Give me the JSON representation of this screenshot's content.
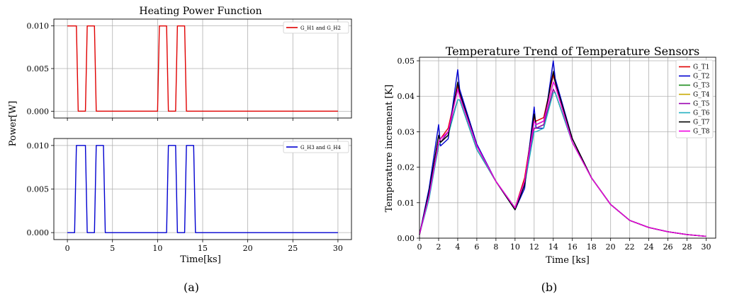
{
  "figure": {
    "panel_a_label": "(a)",
    "panel_b_label": "(b)"
  },
  "chart_data": [
    {
      "type": "line",
      "title": "Heating Power Function",
      "xlabel": "",
      "ylabel": "Power[W]",
      "xlim": [
        -1.5,
        31.5
      ],
      "ylim": [
        -0.0008,
        0.0108
      ],
      "xticks": [
        0,
        5,
        10,
        15,
        20,
        25,
        30
      ],
      "yticks": [
        0.0,
        0.005,
        0.01
      ],
      "ytick_labels": [
        "0.000",
        "0.005",
        "0.010"
      ],
      "grid": true,
      "legend_position": "top-right",
      "series": [
        {
          "name": "G_H1 and G_H2",
          "color": "#e00000",
          "x": [
            0,
            1,
            1.2,
            2,
            2.2,
            3,
            3.2,
            10,
            10.2,
            11,
            11.2,
            12,
            12.2,
            13,
            13.2,
            30
          ],
          "y": [
            0.01,
            0.01,
            0,
            0,
            0.01,
            0.01,
            0,
            0,
            0.01,
            0.01,
            0,
            0,
            0.01,
            0.01,
            0,
            0
          ]
        }
      ]
    },
    {
      "type": "line",
      "title": "",
      "xlabel": "Time[ks]",
      "ylabel": "",
      "xlim": [
        -1.5,
        31.5
      ],
      "ylim": [
        -0.0008,
        0.0108
      ],
      "xticks": [
        0,
        5,
        10,
        15,
        20,
        25,
        30
      ],
      "yticks": [
        0.0,
        0.005,
        0.01
      ],
      "ytick_labels": [
        "0.000",
        "0.005",
        "0.010"
      ],
      "grid": true,
      "legend_position": "top-right",
      "series": [
        {
          "name": "G_H3 and G_H4",
          "color": "#0000d0",
          "x": [
            0,
            0.8,
            1,
            2,
            2.2,
            3,
            3.2,
            4,
            4.2,
            11,
            11.2,
            12,
            12.2,
            13,
            13.2,
            14,
            14.2,
            30
          ],
          "y": [
            0,
            0,
            0.01,
            0.01,
            0,
            0,
            0.01,
            0.01,
            0,
            0,
            0.01,
            0.01,
            0,
            0,
            0.01,
            0.01,
            0,
            0
          ]
        }
      ]
    },
    {
      "type": "line",
      "title": "Temperature Trend of Temperature Sensors",
      "xlabel": "Time [ks]",
      "ylabel": "Temperature increment [K]",
      "xlim": [
        0,
        31
      ],
      "ylim": [
        0,
        0.051
      ],
      "xticks": [
        0,
        2,
        4,
        6,
        8,
        10,
        12,
        14,
        16,
        18,
        20,
        22,
        24,
        26,
        28,
        30
      ],
      "yticks": [
        0.0,
        0.01,
        0.02,
        0.03,
        0.04,
        0.05
      ],
      "ytick_labels": [
        "0.00",
        "0.01",
        "0.02",
        "0.03",
        "0.04",
        "0.05"
      ],
      "grid": true,
      "legend_position": "top-right",
      "x": [
        0,
        1,
        2,
        2.2,
        3,
        4,
        4.2,
        6,
        8,
        10,
        11,
        12,
        12.2,
        13,
        14,
        14.2,
        16,
        18,
        20,
        22,
        24,
        26,
        28,
        30
      ],
      "series": [
        {
          "name": "G_T1",
          "color": "#e00000",
          "y": [
            0.001,
            0.012,
            0.027,
            0.028,
            0.031,
            0.043,
            0.041,
            0.026,
            0.016,
            0.0085,
            0.017,
            0.034,
            0.033,
            0.034,
            0.046,
            0.044,
            0.028,
            0.017,
            0.0095,
            0.005,
            0.003,
            0.0018,
            0.001,
            0.0005
          ]
        },
        {
          "name": "G_T2",
          "color": "#0000d0",
          "y": [
            0.001,
            0.014,
            0.032,
            0.026,
            0.028,
            0.0475,
            0.042,
            0.0265,
            0.016,
            0.008,
            0.014,
            0.037,
            0.031,
            0.031,
            0.05,
            0.045,
            0.028,
            0.017,
            0.0095,
            0.005,
            0.003,
            0.0018,
            0.001,
            0.0005
          ]
        },
        {
          "name": "G_T3",
          "color": "#1a8a1a",
          "y": [
            0.001,
            0.012,
            0.026,
            0.027,
            0.03,
            0.039,
            0.039,
            0.025,
            0.016,
            0.0085,
            0.016,
            0.031,
            0.031,
            0.032,
            0.042,
            0.041,
            0.027,
            0.017,
            0.0095,
            0.005,
            0.003,
            0.0018,
            0.001,
            0.0005
          ]
        },
        {
          "name": "G_T4",
          "color": "#c8a800",
          "y": [
            0.001,
            0.012,
            0.026,
            0.027,
            0.03,
            0.039,
            0.039,
            0.025,
            0.016,
            0.0085,
            0.016,
            0.031,
            0.031,
            0.032,
            0.042,
            0.041,
            0.027,
            0.017,
            0.0095,
            0.005,
            0.003,
            0.0018,
            0.001,
            0.0005
          ]
        },
        {
          "name": "G_T5",
          "color": "#9a00b0",
          "y": [
            0.001,
            0.012,
            0.026,
            0.027,
            0.03,
            0.039,
            0.039,
            0.025,
            0.016,
            0.0085,
            0.016,
            0.031,
            0.031,
            0.032,
            0.042,
            0.041,
            0.027,
            0.017,
            0.0095,
            0.005,
            0.003,
            0.0018,
            0.001,
            0.0005
          ]
        },
        {
          "name": "G_T6",
          "color": "#20b0c0",
          "y": [
            0.001,
            0.011,
            0.026,
            0.027,
            0.029,
            0.039,
            0.039,
            0.025,
            0.016,
            0.0085,
            0.015,
            0.03,
            0.03,
            0.031,
            0.041,
            0.041,
            0.027,
            0.017,
            0.0095,
            0.005,
            0.003,
            0.0018,
            0.001,
            0.0005
          ]
        },
        {
          "name": "G_T7",
          "color": "#000000",
          "y": [
            0.001,
            0.013,
            0.029,
            0.027,
            0.029,
            0.044,
            0.041,
            0.026,
            0.016,
            0.008,
            0.015,
            0.035,
            0.032,
            0.033,
            0.047,
            0.044,
            0.028,
            0.017,
            0.0095,
            0.005,
            0.003,
            0.0018,
            0.001,
            0.0005
          ]
        },
        {
          "name": "G_T8",
          "color": "#f000e0",
          "y": [
            0.001,
            0.012,
            0.027,
            0.028,
            0.03,
            0.042,
            0.04,
            0.026,
            0.016,
            0.0085,
            0.016,
            0.033,
            0.032,
            0.033,
            0.044,
            0.043,
            0.027,
            0.017,
            0.0095,
            0.005,
            0.003,
            0.0018,
            0.001,
            0.0005
          ]
        }
      ]
    }
  ]
}
